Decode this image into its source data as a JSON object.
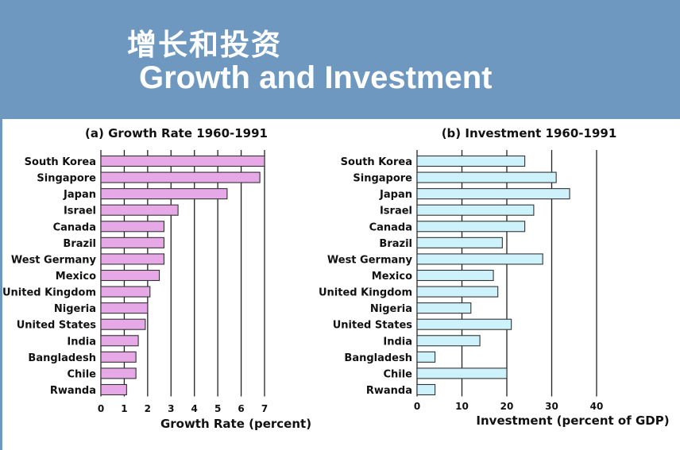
{
  "header": {
    "title_cn": "增长和投资",
    "title_en": "Growth and Investment"
  },
  "chart_data": [
    {
      "type": "bar",
      "orientation": "horizontal",
      "title": "(a) Growth Rate 1960-1991",
      "xlabel": "Growth Rate (percent)",
      "xlim": [
        0,
        7
      ],
      "ticks": [
        0,
        1,
        2,
        3,
        4,
        5,
        6,
        7
      ],
      "categories": [
        "South Korea",
        "Singapore",
        "Japan",
        "Israel",
        "Canada",
        "Brazil",
        "West Germany",
        "Mexico",
        "United Kingdom",
        "Nigeria",
        "United States",
        "India",
        "Bangladesh",
        "Chile",
        "Rwanda"
      ],
      "values": [
        7.0,
        6.8,
        5.4,
        3.3,
        2.7,
        2.7,
        2.7,
        2.5,
        2.1,
        2.0,
        1.9,
        1.6,
        1.5,
        1.5,
        1.1
      ],
      "color": "#e6a8e6"
    },
    {
      "type": "bar",
      "orientation": "horizontal",
      "title": "(b) Investment 1960-1991",
      "xlabel": "Investment (percent of GDP)",
      "xlim": [
        0,
        40
      ],
      "ticks": [
        0,
        10,
        20,
        30,
        40
      ],
      "categories": [
        "South Korea",
        "Singapore",
        "Japan",
        "Israel",
        "Canada",
        "Brazil",
        "West Germany",
        "Mexico",
        "United Kingdom",
        "Nigeria",
        "United States",
        "India",
        "Bangladesh",
        "Chile",
        "Rwanda"
      ],
      "values": [
        24,
        31,
        34,
        26,
        24,
        19,
        28,
        17,
        18,
        12,
        21,
        14,
        4,
        20,
        4
      ],
      "color": "#cdf2fb"
    }
  ]
}
